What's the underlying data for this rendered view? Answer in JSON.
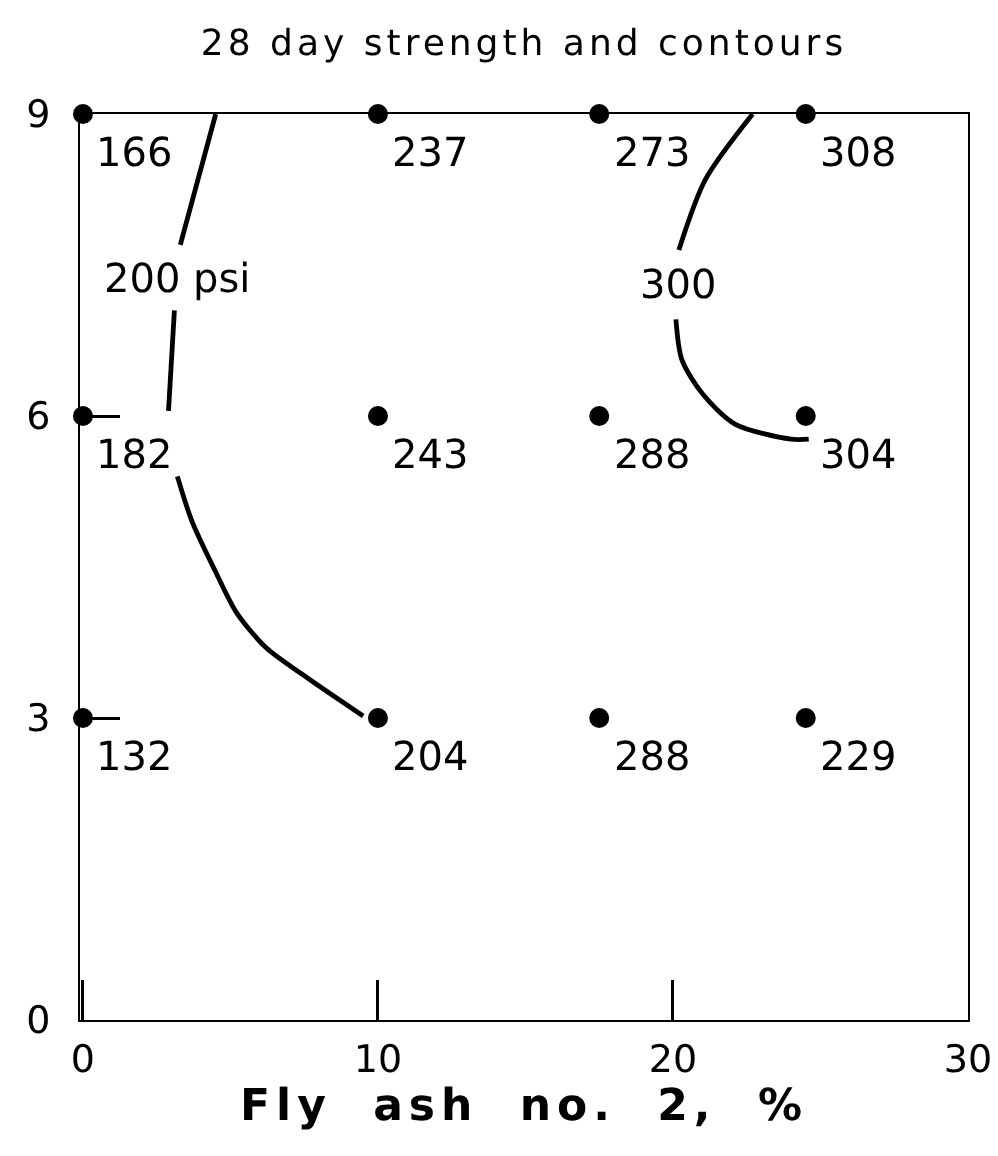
{
  "chart_data": {
    "type": "scatter",
    "title": "28 day strength and contours",
    "xlabel": "Fly ash no. 2, %",
    "xlim": [
      -0.1,
      30
    ],
    "ylim": [
      0,
      9
    ],
    "xticks": [
      0,
      10,
      20,
      30
    ],
    "yticks": [
      0,
      3,
      6,
      9
    ],
    "grid": false,
    "legend": false,
    "series": [
      {
        "color": "#000000",
        "marker": "circle",
        "x": [
          0,
          10,
          17.5,
          24.5,
          0,
          10,
          17.5,
          24.5,
          0,
          10,
          17.5,
          24.5
        ],
        "values": [
          9,
          9,
          9,
          9,
          6,
          6,
          6,
          6,
          3,
          3,
          3,
          3
        ]
      },
      {
        "type": "line",
        "name": "200 psi",
        "color": "#000000",
        "marker": "none",
        "x": [
          4.5,
          3.3,
          null,
          3.1,
          2.9,
          null,
          3.2,
          3.7,
          4.5,
          5.2,
          6.2,
          7.6,
          9.5
        ],
        "values": [
          9,
          7.7,
          null,
          7.05,
          6.05,
          null,
          5.4,
          4.95,
          4.45,
          4.05,
          3.7,
          3.4,
          3.02
        ]
      },
      {
        "type": "line",
        "name": "300",
        "color": "#000000",
        "marker": "none",
        "x": [
          22.7,
          21.1,
          20.2,
          null,
          20.1,
          20.3,
          21.0,
          22.1,
          24.0,
          24.6
        ],
        "values": [
          9,
          8.35,
          7.65,
          null,
          6.96,
          6.56,
          6.22,
          5.92,
          5.77,
          5.77
        ]
      }
    ],
    "annotations": [
      {
        "text": "166",
        "x": 0,
        "y": 9
      },
      {
        "text": "237",
        "x": 10,
        "y": 9
      },
      {
        "text": "273",
        "x": 17.5,
        "y": 9
      },
      {
        "text": "308",
        "x": 24.5,
        "y": 9
      },
      {
        "text": "182",
        "x": 0,
        "y": 6
      },
      {
        "text": "243",
        "x": 10,
        "y": 6
      },
      {
        "text": "288",
        "x": 17.5,
        "y": 6
      },
      {
        "text": "304",
        "x": 24.5,
        "y": 6
      },
      {
        "text": "132",
        "x": 0,
        "y": 3
      },
      {
        "text": "204",
        "x": 10,
        "y": 3
      },
      {
        "text": "288",
        "x": 17.5,
        "y": 3
      },
      {
        "text": "229",
        "x": 24.5,
        "y": 3
      }
    ]
  }
}
